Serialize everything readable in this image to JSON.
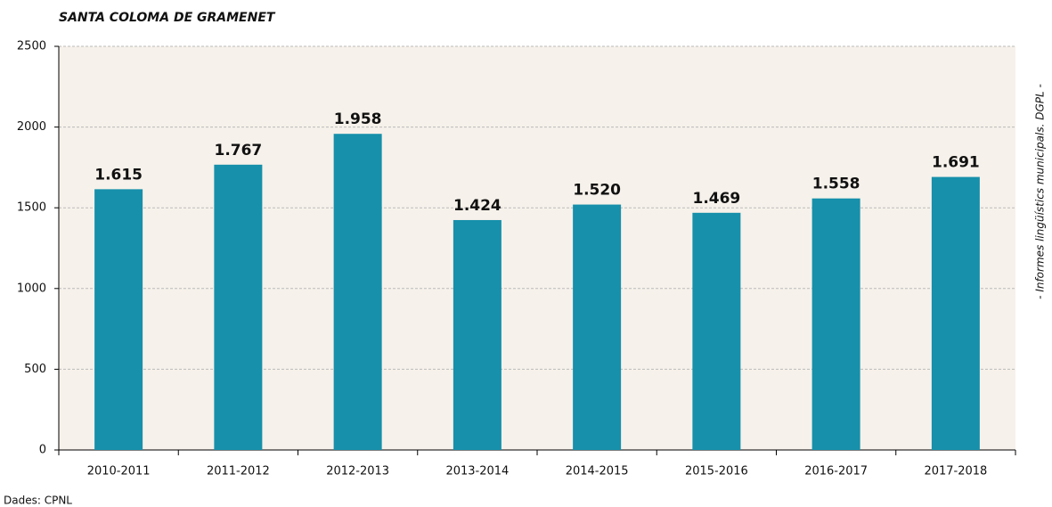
{
  "chart_data": {
    "type": "bar",
    "subtitle": "SANTA COLOMA DE GRAMENET",
    "side_note": "- Informes lingüístics municipals. DGPL -",
    "source": "Dades: CPNL",
    "categories": [
      "2010-2011",
      "2011-2012",
      "2012-2013",
      "2013-2014",
      "2014-2015",
      "2015-2016",
      "2016-2017",
      "2017-2018"
    ],
    "values": [
      1615,
      1767,
      1958,
      1424,
      1520,
      1469,
      1558,
      1691
    ],
    "value_labels": [
      "1.615",
      "1.767",
      "1.958",
      "1.424",
      "1.520",
      "1.469",
      "1.558",
      "1.691"
    ],
    "color": "#1690ab",
    "ylim": [
      0,
      2500
    ],
    "yticks": [
      0,
      500,
      1000,
      1500,
      2000,
      2500
    ],
    "grid": true
  }
}
